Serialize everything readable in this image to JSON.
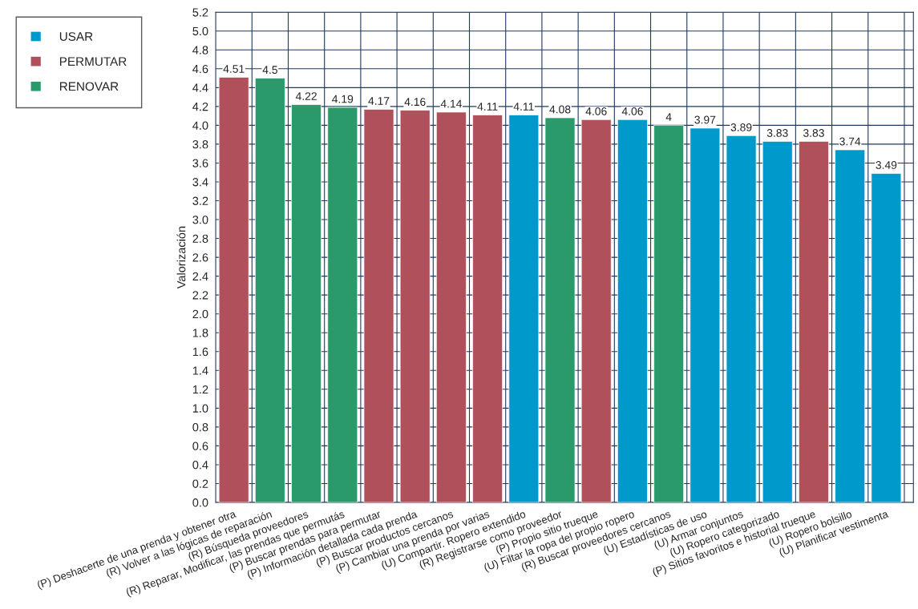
{
  "chart_data": {
    "type": "bar",
    "ylabel": "Valorización",
    "categories": [
      "(P) Deshacerte de una prenda y obtener otra",
      "(R) Volver a las lógicas de reparación",
      "(R) Búsqueda proveedores",
      "(R) Reparar, Modificar, las prendas que permutás",
      "(P) Buscar prendas para permutar",
      "(P) Información detallada cada prenda",
      "(P) Buscar productos cercanos",
      "(P) Cambiar una prenda por varias",
      "(U) Compartir. Ropero extendido",
      "(R) Registrarse como proveedor",
      "(P) Propio sitio trueque",
      "(U) Filtar la ropa del propio ropero",
      "(R) Buscar proveedores cercanos",
      "(U) Estadísticas de uso",
      "(U) Armar conjuntos",
      "(U) Ropero categorizado",
      "(P) Sitios favoritos e historial trueque",
      "(U) Ropero bolsillo",
      "(U) Planificar vestimenta"
    ],
    "series": [
      {
        "name": "USAR",
        "color": "#0099cc",
        "values": [
          null,
          null,
          null,
          null,
          null,
          null,
          null,
          null,
          4.11,
          null,
          null,
          4.06,
          null,
          3.97,
          3.89,
          3.83,
          null,
          3.74,
          3.49
        ]
      },
      {
        "name": "PERMUTAR",
        "color": "#b0505a",
        "values": [
          4.51,
          null,
          null,
          null,
          4.17,
          4.16,
          4.14,
          4.11,
          null,
          null,
          4.06,
          null,
          null,
          null,
          null,
          null,
          3.83,
          null,
          null
        ]
      },
      {
        "name": "RENOVAR",
        "color": "#2a9a6a",
        "values": [
          null,
          4.5,
          4.22,
          4.19,
          null,
          null,
          null,
          null,
          null,
          4.08,
          null,
          null,
          4.0,
          null,
          null,
          null,
          null,
          null,
          null
        ]
      }
    ],
    "ylim": [
      0,
      5.2
    ],
    "yticks": [
      {
        "value": 0,
        "label": "0.0"
      },
      {
        "value": 0.2,
        "label": "0.2"
      },
      {
        "value": 0.4,
        "label": "0.4"
      },
      {
        "value": 0.6,
        "label": "0.6"
      },
      {
        "value": 0.8,
        "label": "0.8"
      },
      {
        "value": 1,
        "label": "1.0"
      },
      {
        "value": 1.2,
        "label": "1.2"
      },
      {
        "value": 1.4,
        "label": "1.4"
      },
      {
        "value": 1.6,
        "label": "1.6"
      },
      {
        "value": 1.8,
        "label": "1.8"
      },
      {
        "value": 2,
        "label": "2.0"
      },
      {
        "value": 2.2,
        "label": "2.2"
      },
      {
        "value": 2.4,
        "label": "2.4"
      },
      {
        "value": 2.6,
        "label": "2.6"
      },
      {
        "value": 2.8,
        "label": "2.8"
      },
      {
        "value": 3,
        "label": "3.0"
      },
      {
        "value": 3.2,
        "label": "3.2"
      },
      {
        "value": 3.4,
        "label": "3.4"
      },
      {
        "value": 3.6,
        "label": "3.6"
      },
      {
        "value": 3.8,
        "label": "3.8"
      },
      {
        "value": 4,
        "label": "4.0"
      },
      {
        "value": 4.2,
        "label": "4.2"
      },
      {
        "value": 4.4,
        "label": "4.4"
      },
      {
        "value": 4.6,
        "label": "4.6"
      },
      {
        "value": 4.8,
        "label": "4.8"
      },
      {
        "value": 5,
        "label": "5.0"
      },
      {
        "value": 5.2,
        "label": "5.2"
      }
    ],
    "grid": true,
    "legend": "top left",
    "data_labels": true
  }
}
